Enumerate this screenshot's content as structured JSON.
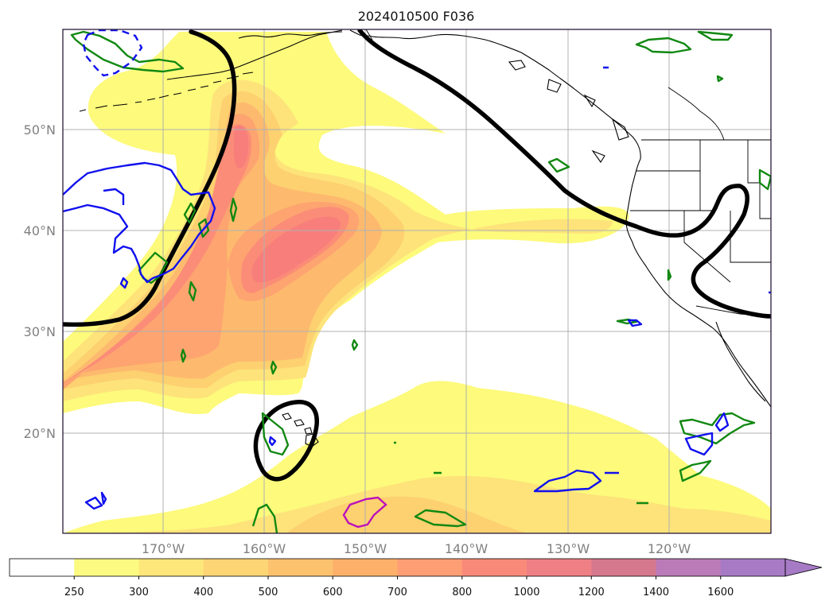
{
  "title": "2024010500 F036",
  "latitude_labels": [
    "50°N",
    "40°N",
    "30°N",
    "20°N"
  ],
  "longitude_labels": [
    "170°W",
    "160°W",
    "150°W",
    "140°W",
    "130°W",
    "120°W"
  ],
  "colorbar": {
    "ticks": [
      "250",
      "300",
      "400",
      "500",
      "600",
      "700",
      "800",
      "1000",
      "1200",
      "1400",
      "1600"
    ],
    "colors": [
      "#ffffff",
      "#fcfa80",
      "#fde77a",
      "#fdd574",
      "#fdc26e",
      "#fdb06a",
      "#fd9e74",
      "#f98a7a",
      "#ee7f84",
      "#d5788d",
      "#bb7ab8",
      "#a77ac6"
    ],
    "extend": "max"
  },
  "plume_colors": {
    "l1": "#fdfa7c",
    "l2": "#fde37a",
    "l3": "#fdd070",
    "l4": "#fdba6e",
    "l5": "#fda470",
    "l6": "#fb8c78",
    "l7": "#f87e7c"
  },
  "contour_colors": {
    "height": "#000000",
    "green": "#118811",
    "blue": "#1010ee",
    "magenta": "#bb11bb"
  },
  "icons": {
    "colorbar_extend": "triangle-arrow-icon"
  }
}
